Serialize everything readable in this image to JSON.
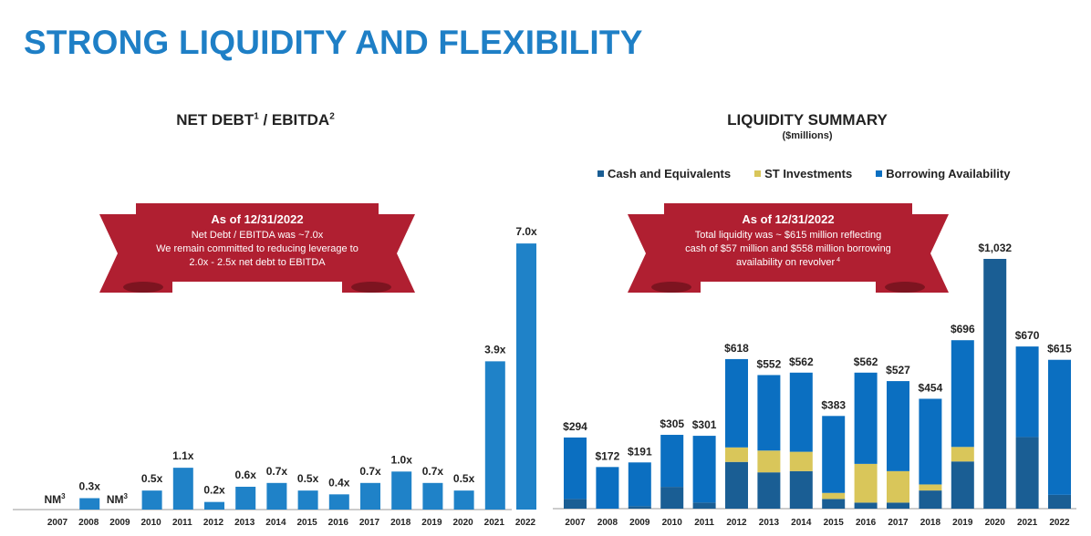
{
  "page": {
    "title": "STRONG LIQUIDITY AND FLEXIBILITY"
  },
  "left_chart": {
    "title": "NET DEBT",
    "title_sup1": "1",
    "title_mid": " / EBITDA",
    "title_sup2": "2",
    "banner": {
      "heading": "As of 12/31/2022",
      "lines": [
        "Net Debt / EBITDA was ~7.0x",
        "We remain committed to reducing leverage to",
        "2.0x - 2.5x net debt to EBITDA"
      ]
    }
  },
  "right_chart": {
    "title": "LIQUIDITY SUMMARY",
    "subtitle": "($millions)",
    "banner": {
      "heading": "As of 12/31/2022",
      "lines": [
        "Total liquidity was ~ $615 million reflecting",
        "cash of $57 million and $558 million borrowing",
        "availability on revolver"
      ],
      "footnote": "4"
    }
  },
  "colors": {
    "title": "#1e7fc6",
    "bar_single": "#1f82c8",
    "cash": "#1a5e94",
    "st_investments": "#d9c65a",
    "borrowing": "#0b6fc1",
    "banner": "#b01f31",
    "banner_dark": "#7d1420"
  },
  "chart_data": [
    {
      "type": "bar",
      "title": "NET DEBT 1 / EBITDA 2",
      "categories": [
        "2007",
        "2008",
        "2009",
        "2010",
        "2011",
        "2012",
        "2013",
        "2014",
        "2015",
        "2016",
        "2017",
        "2018",
        "2019",
        "2020",
        "2021",
        "2022"
      ],
      "values": [
        null,
        0.3,
        null,
        0.5,
        1.1,
        0.2,
        0.6,
        0.7,
        0.5,
        0.4,
        0.7,
        1.0,
        0.7,
        0.5,
        3.9,
        7.0
      ],
      "labels": [
        "NM",
        "0.3x",
        "NM",
        "0.5x",
        "1.1x",
        "0.2x",
        "0.6x",
        "0.7x",
        "0.5x",
        "0.4x",
        "0.7x",
        "1.0x",
        "0.7x",
        "0.5x",
        "3.9x",
        "7.0x"
      ],
      "label_sups": [
        "3",
        "",
        "3",
        "",
        "",
        "",
        "",
        "",
        "",
        "",
        "",
        "",
        "",
        "",
        "",
        ""
      ],
      "ylim": [
        0,
        7.5
      ]
    },
    {
      "type": "bar",
      "stacked": true,
      "title": "LIQUIDITY SUMMARY",
      "categories": [
        "2007",
        "2008",
        "2009",
        "2010",
        "2011",
        "2012",
        "2013",
        "2014",
        "2015",
        "2016",
        "2017",
        "2018",
        "2019",
        "2020",
        "2021",
        "2022"
      ],
      "series": [
        {
          "name": "Cash and Equivalents",
          "values": [
            40,
            0,
            10,
            90,
            25,
            193,
            150,
            155,
            40,
            25,
            25,
            75,
            195,
            1032,
            296,
            57
          ]
        },
        {
          "name": "ST Investments",
          "values": [
            0,
            0,
            0,
            0,
            0,
            60,
            90,
            80,
            25,
            160,
            130,
            25,
            60,
            0,
            0,
            0
          ]
        },
        {
          "name": "Borrowing Availability",
          "values": [
            254,
            172,
            181,
            215,
            276,
            365,
            312,
            327,
            318,
            377,
            372,
            354,
            441,
            0,
            374,
            558
          ]
        }
      ],
      "totals": [
        "$294",
        "$172",
        "$191",
        "$305",
        "$301",
        "$618",
        "$552",
        "$562",
        "$383",
        "$562",
        "$527",
        "$454",
        "$696",
        "$1,032",
        "$670",
        "$615"
      ],
      "legend_position": "top",
      "ylim": [
        0,
        1100
      ]
    }
  ]
}
